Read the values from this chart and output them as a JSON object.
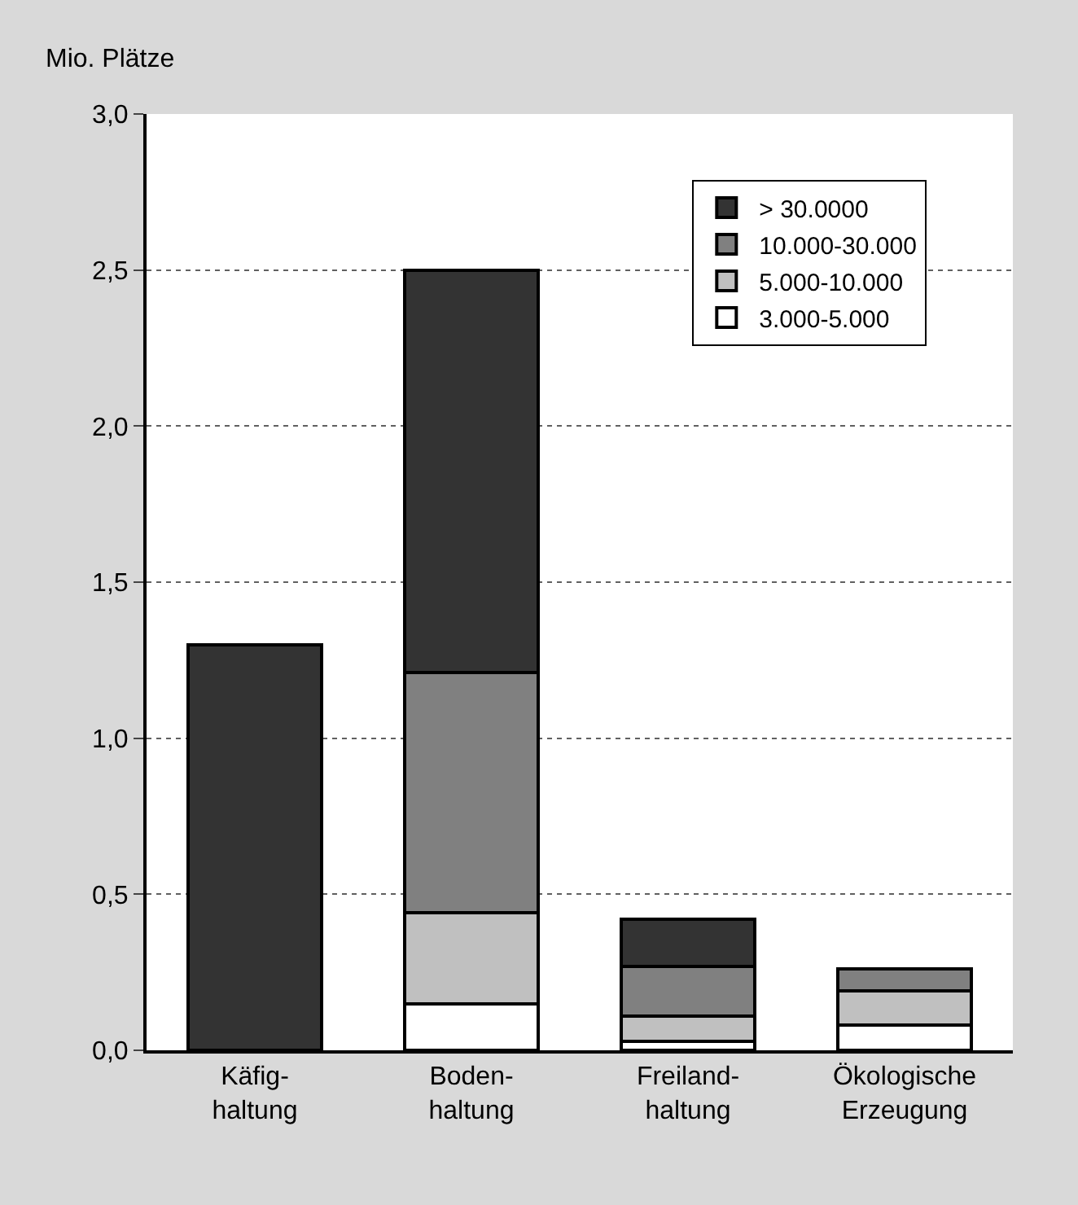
{
  "chart_data": {
    "type": "bar",
    "stacked": true,
    "ylabel": "Mio. Plätze",
    "categories": [
      "Käfig-\nhaltung",
      "Boden-\nhaltung",
      "Freiland-\nhaltung",
      "Ökologische\nErzeugung"
    ],
    "series": [
      {
        "name": "3.000-5.000",
        "color": "#ffffff",
        "values": [
          null,
          0.15,
          0.03,
          0.08
        ]
      },
      {
        "name": "5.000-10.000",
        "color": "#c0c0c0",
        "values": [
          null,
          0.29,
          0.08,
          0.11
        ]
      },
      {
        "name": "10.000-30.000",
        "color": "#808080",
        "values": [
          null,
          0.77,
          0.16,
          0.07
        ]
      },
      {
        "name": "> 30.0000",
        "color": "#333333",
        "values": [
          1.3,
          1.29,
          0.15,
          null
        ]
      }
    ],
    "ylim": [
      0,
      3.0
    ],
    "yticks": [
      {
        "value": 0,
        "label": "0,0"
      },
      {
        "value": 0.5,
        "label": "0,5"
      },
      {
        "value": 1.0,
        "label": "1,0"
      },
      {
        "value": 1.5,
        "label": "1,5"
      },
      {
        "value": 2.0,
        "label": "2,0"
      },
      {
        "value": 2.5,
        "label": "2,5"
      },
      {
        "value": 3.0,
        "label": "3,0"
      }
    ],
    "grid": "y",
    "legend": "top right"
  }
}
